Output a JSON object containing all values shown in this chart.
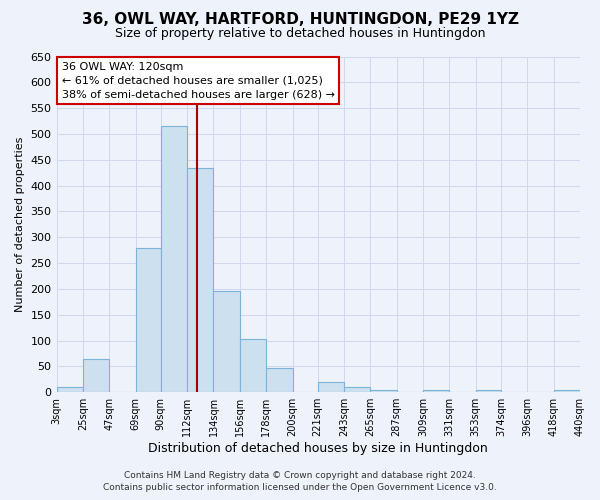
{
  "title": "36, OWL WAY, HARTFORD, HUNTINGDON, PE29 1YZ",
  "subtitle": "Size of property relative to detached houses in Huntingdon",
  "xlabel": "Distribution of detached houses by size in Huntingdon",
  "ylabel": "Number of detached properties",
  "footnote1": "Contains HM Land Registry data © Crown copyright and database right 2024.",
  "footnote2": "Contains public sector information licensed under the Open Government Licence v3.0.",
  "bar_edges": [
    3,
    25,
    47,
    69,
    90,
    112,
    134,
    156,
    178,
    200,
    221,
    243,
    265,
    287,
    309,
    331,
    353,
    374,
    396,
    418,
    440
  ],
  "bar_heights": [
    10,
    65,
    0,
    280,
    515,
    435,
    195,
    103,
    47,
    0,
    20,
    10,
    5,
    0,
    5,
    0,
    5,
    0,
    0,
    5
  ],
  "bar_color": "#cce0f0",
  "bar_edge_color": "#7ab4d8",
  "property_line_x": 120,
  "property_line_color": "#aa0000",
  "ylim": [
    0,
    650
  ],
  "yticks": [
    0,
    50,
    100,
    150,
    200,
    250,
    300,
    350,
    400,
    450,
    500,
    550,
    600,
    650
  ],
  "tick_labels": [
    "3sqm",
    "25sqm",
    "47sqm",
    "69sqm",
    "90sqm",
    "112sqm",
    "134sqm",
    "156sqm",
    "178sqm",
    "200sqm",
    "221sqm",
    "243sqm",
    "265sqm",
    "287sqm",
    "309sqm",
    "331sqm",
    "353sqm",
    "374sqm",
    "396sqm",
    "418sqm",
    "440sqm"
  ],
  "annotation_line1": "36 OWL WAY: 120sqm",
  "annotation_line2": "← 61% of detached houses are smaller (1,025)",
  "annotation_line3": "38% of semi-detached houses are larger (628) →",
  "annotation_box_color": "#ffffff",
  "annotation_box_edgecolor": "#cc0000",
  "bg_color": "#eef2fa",
  "grid_color": "#d0d8f0"
}
